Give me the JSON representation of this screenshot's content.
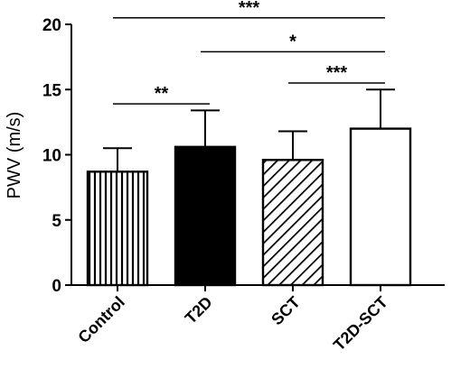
{
  "chart_data": {
    "type": "bar",
    "title": "",
    "xlabel": "",
    "ylabel": "PWV (m/s)",
    "ylim": [
      0,
      20
    ],
    "yticks": [
      0,
      5,
      10,
      15,
      20
    ],
    "categories": [
      "Control",
      "T2D",
      "SCT",
      "T2D-SCT"
    ],
    "values": [
      8.7,
      10.6,
      9.6,
      12.0
    ],
    "errors": [
      1.8,
      2.8,
      2.2,
      3.0
    ],
    "patterns": [
      "vertical-stripes",
      "solid-black",
      "diagonal-stripes",
      "white"
    ],
    "grid": false,
    "significance": [
      {
        "from": "Control",
        "to": "T2D-SCT",
        "label": "***",
        "y": 20.5
      },
      {
        "from": "T2D",
        "to": "T2D-SCT",
        "label": "*",
        "y": 17.9
      },
      {
        "from": "SCT",
        "to": "T2D-SCT",
        "label": "***",
        "y": 15.5
      },
      {
        "from": "Control",
        "to": "T2D",
        "label": "**",
        "y": 13.9
      }
    ]
  }
}
